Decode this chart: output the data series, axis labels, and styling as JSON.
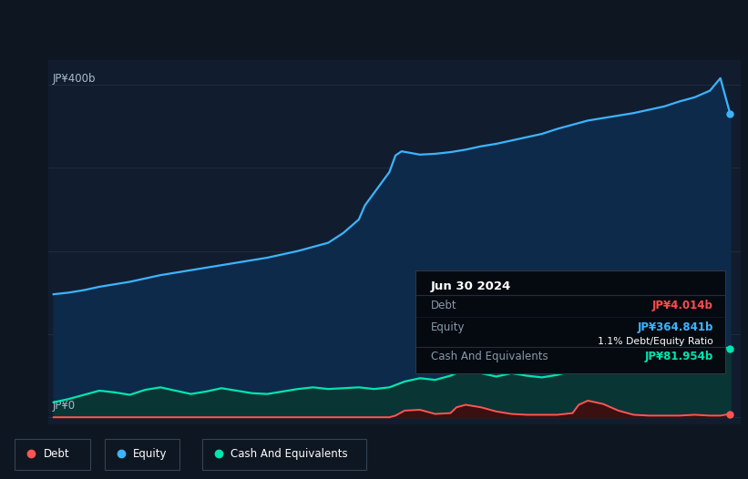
{
  "background_color": "#0e1621",
  "plot_bg_color": "#111d2e",
  "title_box": {
    "date": "Jun 30 2024",
    "debt_label": "Debt",
    "debt_value": "JP¥4.014b",
    "equity_label": "Equity",
    "equity_value": "JP¥364.841b",
    "ratio": "1.1% Debt/Equity Ratio",
    "cash_label": "Cash And Equivalents",
    "cash_value": "JP¥81.954b",
    "debt_color": "#ff4c4c",
    "equity_color": "#3cb4ff",
    "cash_color": "#00e5b0"
  },
  "ylabel_top": "JP¥400b",
  "ylabel_bottom": "JP¥0",
  "xlim": [
    2013.42,
    2024.75
  ],
  "ylim": [
    -8,
    430
  ],
  "x_ticks": [
    2014,
    2015,
    2016,
    2017,
    2018,
    2019,
    2020,
    2021,
    2022,
    2023,
    2024
  ],
  "equity_color": "#3cb4ff",
  "equity_fill": "#0e2a4a",
  "debt_color": "#ff5555",
  "cash_color": "#00e5b0",
  "cash_fill": "#0a3535",
  "legend": [
    {
      "label": "Debt",
      "color": "#ff5555"
    },
    {
      "label": "Equity",
      "color": "#3cb4ff"
    },
    {
      "label": "Cash And Equivalents",
      "color": "#00e5b0"
    }
  ],
  "equity_x": [
    2013.5,
    2013.75,
    2014.0,
    2014.25,
    2014.5,
    2014.75,
    2015.0,
    2015.25,
    2015.5,
    2015.75,
    2016.0,
    2016.25,
    2016.5,
    2016.75,
    2017.0,
    2017.25,
    2017.5,
    2017.75,
    2018.0,
    2018.25,
    2018.5,
    2018.6,
    2018.75,
    2019.0,
    2019.1,
    2019.2,
    2019.35,
    2019.5,
    2019.75,
    2020.0,
    2020.25,
    2020.5,
    2020.75,
    2021.0,
    2021.25,
    2021.5,
    2021.75,
    2022.0,
    2022.25,
    2022.5,
    2022.75,
    2023.0,
    2023.25,
    2023.5,
    2023.75,
    2024.0,
    2024.25,
    2024.42,
    2024.58
  ],
  "equity_y": [
    148,
    150,
    153,
    157,
    160,
    163,
    167,
    171,
    174,
    177,
    180,
    183,
    186,
    189,
    192,
    196,
    200,
    205,
    210,
    222,
    238,
    255,
    270,
    295,
    315,
    320,
    318,
    316,
    317,
    319,
    322,
    326,
    329,
    333,
    337,
    341,
    347,
    352,
    357,
    360,
    363,
    366,
    370,
    374,
    380,
    385,
    393,
    408,
    365
  ],
  "cash_x": [
    2013.5,
    2013.75,
    2014.0,
    2014.25,
    2014.5,
    2014.75,
    2015.0,
    2015.25,
    2015.5,
    2015.75,
    2016.0,
    2016.25,
    2016.5,
    2016.75,
    2017.0,
    2017.25,
    2017.5,
    2017.75,
    2018.0,
    2018.25,
    2018.5,
    2018.75,
    2019.0,
    2019.25,
    2019.5,
    2019.75,
    2020.0,
    2020.25,
    2020.5,
    2020.75,
    2021.0,
    2021.25,
    2021.5,
    2021.75,
    2022.0,
    2022.25,
    2022.5,
    2022.75,
    2023.0,
    2023.25,
    2023.5,
    2023.75,
    2024.0,
    2024.25,
    2024.42,
    2024.58
  ],
  "cash_y": [
    18,
    22,
    27,
    32,
    30,
    27,
    33,
    36,
    32,
    28,
    31,
    35,
    32,
    29,
    28,
    31,
    34,
    36,
    34,
    35,
    36,
    34,
    36,
    43,
    47,
    45,
    50,
    58,
    53,
    49,
    53,
    50,
    48,
    51,
    56,
    63,
    57,
    60,
    63,
    67,
    71,
    68,
    73,
    78,
    86,
    82
  ],
  "debt_x": [
    2013.5,
    2013.75,
    2014.0,
    2014.25,
    2014.5,
    2014.75,
    2015.0,
    2015.25,
    2015.5,
    2015.75,
    2016.0,
    2016.25,
    2016.5,
    2016.75,
    2017.0,
    2017.25,
    2017.5,
    2017.75,
    2018.0,
    2018.25,
    2018.5,
    2018.75,
    2019.0,
    2019.1,
    2019.25,
    2019.5,
    2019.75,
    2020.0,
    2020.1,
    2020.25,
    2020.5,
    2020.75,
    2021.0,
    2021.25,
    2021.5,
    2021.75,
    2022.0,
    2022.1,
    2022.25,
    2022.5,
    2022.75,
    2023.0,
    2023.25,
    2023.5,
    2023.75,
    2024.0,
    2024.25,
    2024.42,
    2024.58
  ],
  "debt_y": [
    0,
    0,
    0,
    0,
    0,
    0,
    0,
    0,
    0,
    0,
    0,
    0,
    0,
    0,
    0,
    0,
    0,
    0,
    0,
    0,
    0,
    0,
    0,
    2,
    8,
    9,
    4,
    5,
    12,
    15,
    12,
    7,
    4,
    3,
    3,
    3,
    5,
    15,
    20,
    16,
    8,
    3,
    2,
    2,
    2,
    3,
    2,
    2,
    4
  ]
}
